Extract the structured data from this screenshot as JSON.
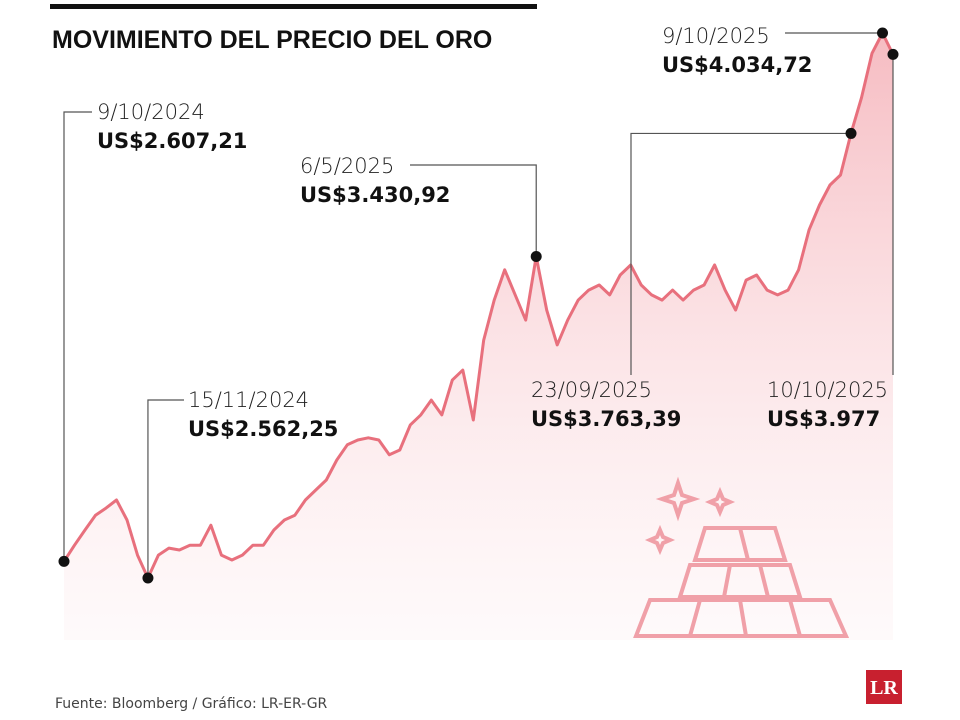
{
  "chart_data": {
    "type": "line",
    "title": "MOVIMIENTO DEL PRECIO DEL ORO",
    "source": "Fuente: Bloomberg / Gráfico: LR-ER-GR",
    "logo": "LR",
    "color": "#e8707d",
    "values": [
      2607.21,
      2651,
      2692,
      2732,
      2751,
      2773,
      2719,
      2624,
      2562.25,
      2624,
      2643,
      2638,
      2651,
      2651,
      2705,
      2624,
      2611,
      2624,
      2651,
      2651,
      2692,
      2719,
      2732,
      2773,
      2800,
      2827,
      2881,
      2922,
      2935,
      2941,
      2935,
      2895,
      2908,
      2976,
      3003,
      3043,
      3003,
      3097,
      3124,
      2989,
      3205,
      3313,
      3395,
      3327,
      3259,
      3430.92,
      3286,
      3192,
      3259,
      3313,
      3340,
      3354,
      3327,
      3381,
      3408,
      3354,
      3327,
      3313,
      3340,
      3313,
      3340,
      3354,
      3408,
      3340,
      3286,
      3367,
      3381,
      3340,
      3327,
      3340,
      3395,
      3503,
      3570,
      3624,
      3651,
      3763.39,
      3860,
      3980,
      4034.72,
      3977
    ],
    "annotations": [
      {
        "date": "9/10/2024",
        "label": "US$2.607,21",
        "value": 2607.21
      },
      {
        "date": "15/11/2024",
        "label": "US$2.562,25",
        "value": 2562.25
      },
      {
        "date": "6/5/2025",
        "label": "US$3.430,92",
        "value": 3430.92
      },
      {
        "date": "23/09/2025",
        "label": "US$3.763,39",
        "value": 3763.39
      },
      {
        "date": "9/10/2025",
        "label": "US$4.034,72",
        "value": 4034.72
      },
      {
        "date": "10/10/2025",
        "label": "US$3.977",
        "value": 3977
      }
    ]
  }
}
